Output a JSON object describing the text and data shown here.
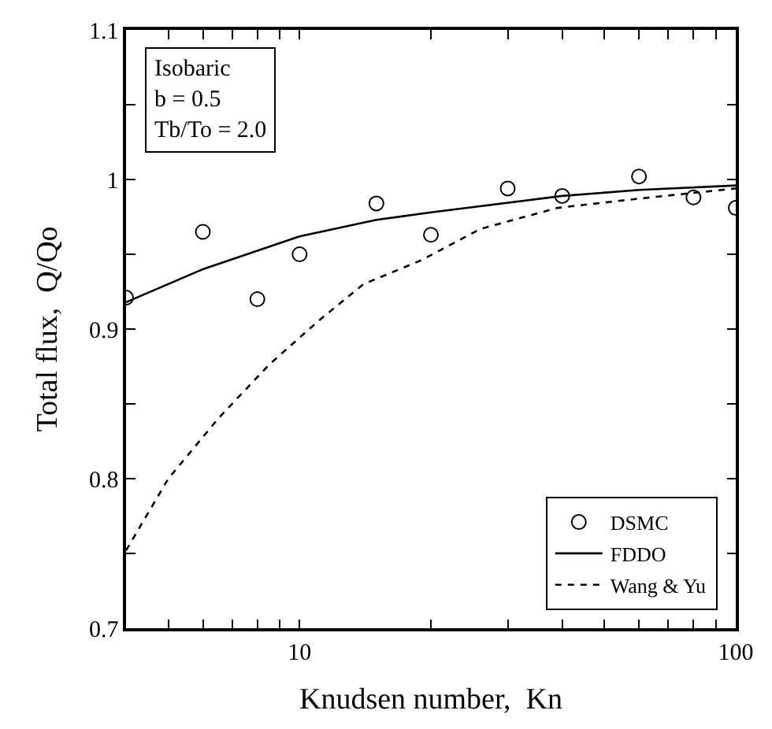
{
  "chart_data": {
    "type": "line",
    "xlabel": "Knudsen number,  Kn",
    "ylabel": "Total flux,  Q/Qo",
    "annotations": [
      "Isobaric\nb = 0.5\nTb/To = 2.0"
    ],
    "log": "x",
    "xlim": [
      4,
      100
    ],
    "ylim": [
      0.7,
      1.1
    ],
    "xticks": [
      {
        "value": 5,
        "label": null
      },
      {
        "value": 6,
        "label": null
      },
      {
        "value": 7,
        "label": null
      },
      {
        "value": 8,
        "label": null
      },
      {
        "value": 9,
        "label": null
      },
      10,
      {
        "value": 20,
        "label": null
      },
      {
        "value": 30,
        "label": null
      },
      {
        "value": 40,
        "label": null
      },
      {
        "value": 50,
        "label": null
      },
      {
        "value": 60,
        "label": null
      },
      {
        "value": 70,
        "label": null
      },
      {
        "value": 80,
        "label": null
      },
      {
        "value": 90,
        "label": null
      },
      100
    ],
    "yticks": [
      0.7,
      {
        "value": 0.75,
        "label": null
      },
      0.8,
      {
        "value": 0.85,
        "label": null
      },
      0.9,
      {
        "value": 0.95,
        "label": null
      },
      {
        "value": 1,
        "label": "1"
      },
      {
        "value": 1.05,
        "label": null
      },
      1.1
    ],
    "legend": "bottom right",
    "series": [
      {
        "name": "DSMC",
        "type": "scatter",
        "marker": "circle",
        "color": "#000000",
        "x": [
          4,
          6,
          8,
          10,
          15,
          20,
          30,
          40,
          60,
          80,
          100
        ],
        "values": [
          0.921,
          0.965,
          0.92,
          0.95,
          0.984,
          0.963,
          0.994,
          0.989,
          1.002,
          0.988,
          0.981
        ]
      },
      {
        "name": "FDDO",
        "line_style": "solid",
        "color": "#000000",
        "x": [
          4,
          6,
          10,
          15,
          20,
          40,
          60,
          100
        ],
        "values": [
          0.918,
          0.94,
          0.962,
          0.973,
          0.978,
          0.989,
          0.993,
          0.996
        ]
      },
      {
        "name": "Wang & Yu",
        "line_style": "dashed",
        "color": "#000000",
        "x": [
          4,
          5,
          6.5,
          8.5,
          11,
          14,
          19,
          26,
          39,
          59,
          100
        ],
        "values": [
          0.752,
          0.8,
          0.84,
          0.876,
          0.905,
          0.93,
          0.946,
          0.967,
          0.981,
          0.987,
          0.994
        ]
      }
    ]
  }
}
